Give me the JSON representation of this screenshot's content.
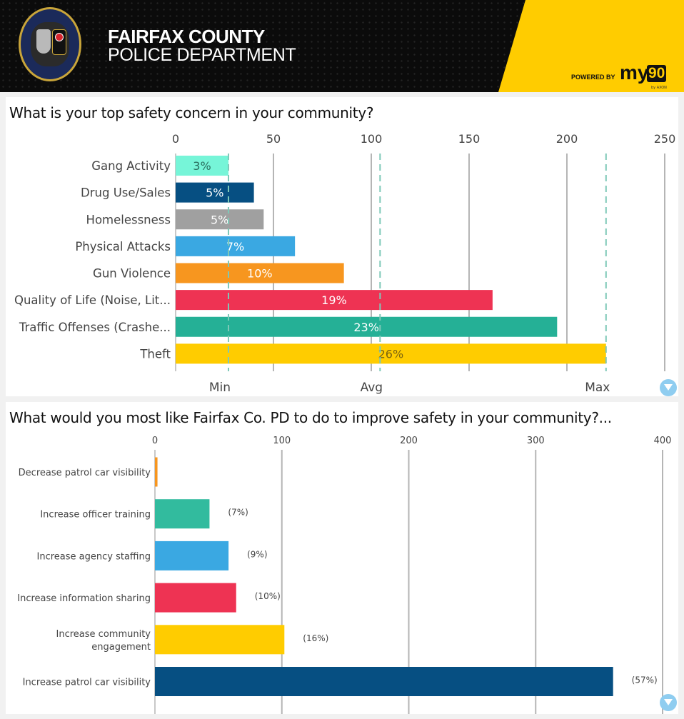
{
  "header": {
    "title_line1": "FAIRFAX COUNTY",
    "title_line2": "POLICE DEPARTMENT",
    "powered_by": "POWERED BY",
    "brand_my": "my",
    "brand_90": "90",
    "brand_by": "by AXON",
    "logo_text": "FAIRFAX COUNTY POLICE DEPARTMENT",
    "colors": {
      "background": "#0b0b0b",
      "accent": "#ffcc00"
    }
  },
  "chart_data": [
    {
      "type": "bar",
      "orientation": "horizontal",
      "title": "What is your top safety concern in your community?",
      "categories": [
        "Gang Activity",
        "Drug Use/Sales",
        "Homelessness",
        "Physical Attacks",
        "Gun Violence",
        "Quality of Life (Noise, Lit...",
        "Traffic Offenses (Crashe...",
        "Theft"
      ],
      "values": [
        27,
        40,
        45,
        61,
        86,
        162,
        195,
        220
      ],
      "data_labels": [
        "3%",
        "5%",
        "5%",
        "7%",
        "10%",
        "19%",
        "23%",
        "26%"
      ],
      "colors": [
        "#76f5d8",
        "#064f82",
        "#a0a0a0",
        "#3aa8e2",
        "#f7961f",
        "#ee3353",
        "#25b096",
        "#ffcc00"
      ],
      "label_colors": [
        "#2a6e5e",
        "#ffffff",
        "#ffffff",
        "#ffffff",
        "#ffffff",
        "#ffffff",
        "#ffffff",
        "#7a6410"
      ],
      "xticks": [
        0,
        50,
        100,
        150,
        200,
        250
      ],
      "xlim": [
        0,
        250
      ],
      "grid": true,
      "reference_lines": [
        {
          "label": "Min",
          "value": 27
        },
        {
          "label": "Avg",
          "value": 104.5
        },
        {
          "label": "Max",
          "value": 220
        }
      ],
      "reference_color": "#7ec8b8",
      "axis_position": "top"
    },
    {
      "type": "bar",
      "orientation": "horizontal",
      "title": "What would you most like Fairfax Co. PD to do to improve safety in your community?...",
      "categories": [
        "Decrease patrol car visibility",
        "Increase officer training",
        "Increase agency staffing",
        "Increase information sharing",
        "Increase community engagement",
        "Increase patrol car visibility"
      ],
      "category_lines": [
        [
          "Decrease patrol car visibility"
        ],
        [
          "Increase officer training"
        ],
        [
          "Increase agency staffing"
        ],
        [
          "Increase information sharing"
        ],
        [
          "Increase community",
          "engagement"
        ],
        [
          "Increase patrol car visibility"
        ]
      ],
      "values": [
        2,
        43,
        58,
        64,
        102,
        361
      ],
      "data_labels": [
        "",
        "(7%)",
        "(9%)",
        "(10%)",
        "(16%)",
        "(57%)"
      ],
      "colors": [
        "#f7961f",
        "#32bb9e",
        "#3aa8e2",
        "#ee3353",
        "#ffcc00",
        "#064f82"
      ],
      "xticks": [
        0,
        100,
        200,
        300,
        400
      ],
      "xlim": [
        0,
        400
      ],
      "grid": true,
      "axis_position": "top"
    }
  ]
}
